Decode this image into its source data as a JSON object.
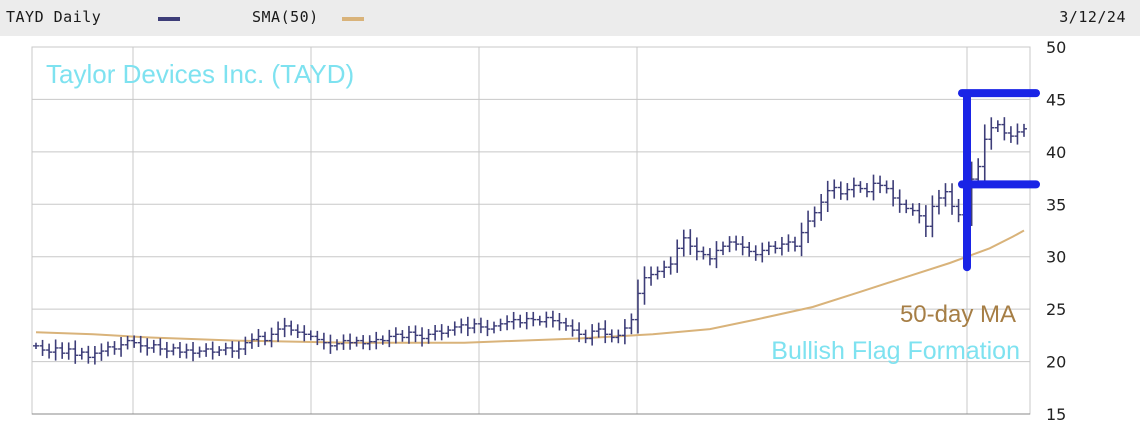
{
  "header": {
    "symbol_label": "TAYD Daily",
    "sma_label": "SMA(50)",
    "date": "3/12/24"
  },
  "colors": {
    "price": "#3d3d78",
    "sma": "#d9b37a",
    "title_text": "#7ee2f0",
    "ma_text": "#a67e45",
    "flag_marker": "#1a24e6",
    "grid": "#c8c8c8"
  },
  "chart_data": {
    "type": "ohlc",
    "title": "Taylor Devices Inc. (TAYD)",
    "y_ticks": [
      15,
      20,
      25,
      30,
      35,
      40,
      45,
      50
    ],
    "ylim": [
      15,
      50
    ],
    "grid": true,
    "annotations": {
      "ma_label": "50-day MA",
      "pattern_label": "Bullish Flag Formation"
    },
    "price_series": [
      21.5,
      21.1,
      20.9,
      21.3,
      20.8,
      21.2,
      20.6,
      20.9,
      20.4,
      20.8,
      21.0,
      21.4,
      21.2,
      21.6,
      22.0,
      21.8,
      21.5,
      21.3,
      21.6,
      21.2,
      21.0,
      21.3,
      20.9,
      21.1,
      20.8,
      21.0,
      21.2,
      20.9,
      21.1,
      21.3,
      21.0,
      21.2,
      21.8,
      22.1,
      22.4,
      22.0,
      22.6,
      23.1,
      23.4,
      23.0,
      22.8,
      22.6,
      22.4,
      22.1,
      21.8,
      21.5,
      21.7,
      22.0,
      21.8,
      22.0,
      21.7,
      21.9,
      22.1,
      22.0,
      22.4,
      22.6,
      22.3,
      22.8,
      22.5,
      22.2,
      22.6,
      22.9,
      22.7,
      23.0,
      23.3,
      23.5,
      23.2,
      23.6,
      23.3,
      23.1,
      23.4,
      23.6,
      23.8,
      24.0,
      23.7,
      24.1,
      24.0,
      23.8,
      24.2,
      23.9,
      23.7,
      23.4,
      23.0,
      22.6,
      22.2,
      22.9,
      23.1,
      22.6,
      22.3,
      22.5,
      23.2,
      24.0,
      26.5,
      28.0,
      28.3,
      28.6,
      29.0,
      29.3,
      30.8,
      31.8,
      31.0,
      30.5,
      30.2,
      29.8,
      30.6,
      31.0,
      31.4,
      31.2,
      30.9,
      30.5,
      30.2,
      30.6,
      31.0,
      30.8,
      31.2,
      31.4,
      31.0,
      32.3,
      33.4,
      34.2,
      35.2,
      36.3,
      36.6,
      36.0,
      36.4,
      36.8,
      36.5,
      36.2,
      37.0,
      36.8,
      36.5,
      35.6,
      35.0,
      34.6,
      34.4,
      33.9,
      32.9,
      34.8,
      35.6,
      36.2,
      34.8,
      34.0,
      34.6,
      37.4,
      38.6,
      41.2,
      42.3,
      42.6,
      41.8,
      41.5,
      41.9,
      42.2
    ],
    "sma_points": [
      [
        0,
        22.8
      ],
      [
        10,
        22.6
      ],
      [
        20,
        22.3
      ],
      [
        35,
        22.0
      ],
      [
        55,
        21.8
      ],
      [
        75,
        21.8
      ],
      [
        95,
        22.2
      ],
      [
        108,
        22.6
      ],
      [
        118,
        23.1
      ],
      [
        126,
        24.0
      ],
      [
        136,
        25.2
      ],
      [
        144,
        26.6
      ],
      [
        152,
        28.0
      ],
      [
        160,
        29.4
      ],
      [
        167,
        30.8
      ],
      [
        171,
        31.9
      ],
      [
        173,
        32.5
      ]
    ]
  }
}
